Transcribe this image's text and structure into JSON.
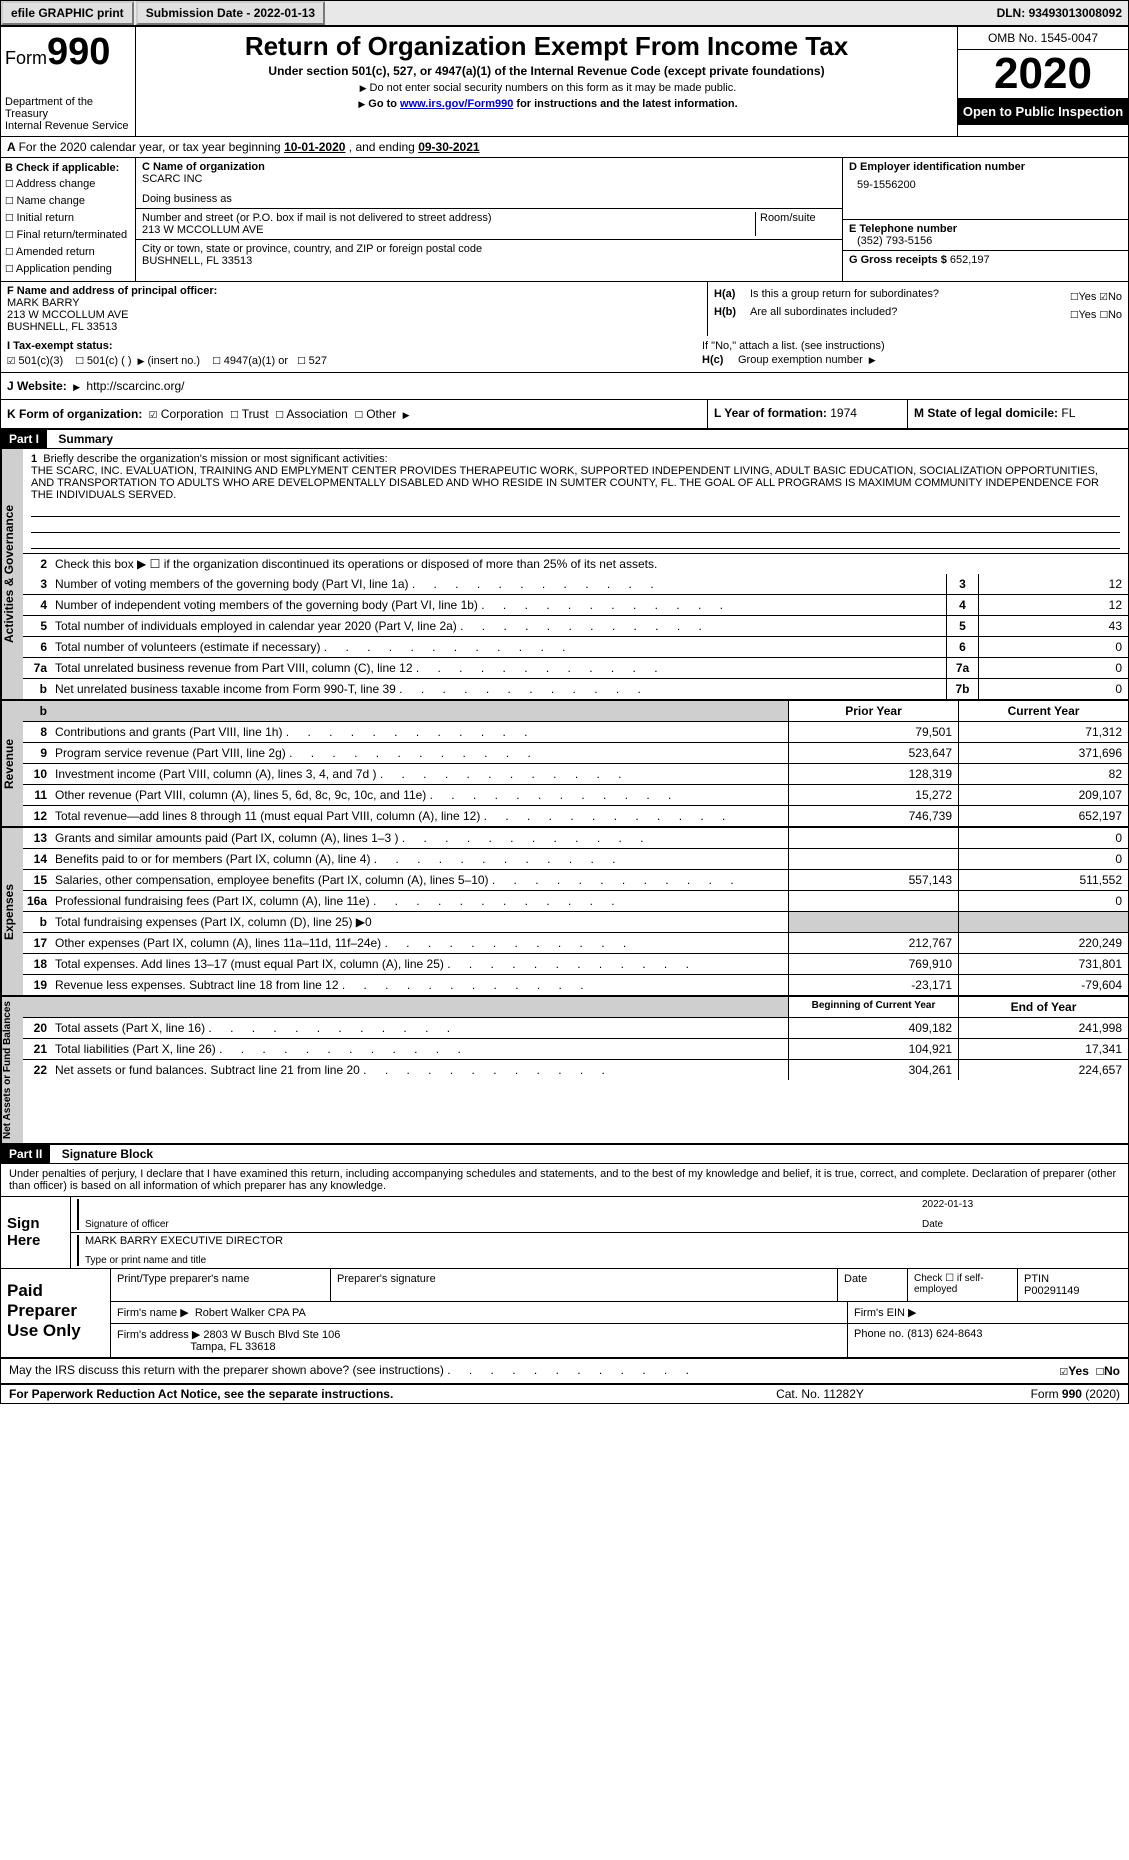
{
  "topbar": {
    "efile": "efile GRAPHIC print",
    "subdate_lbl": "Submission Date - ",
    "subdate": "2022-01-13",
    "dln_lbl": "DLN: ",
    "dln": "93493013008092"
  },
  "header": {
    "form_lbl": "Form",
    "form_num": "990",
    "dept": "Department of the Treasury\nInternal Revenue Service",
    "title": "Return of Organization Exempt From Income Tax",
    "subtitle": "Under section 501(c), 527, or 4947(a)(1) of the Internal Revenue Code (except private foundations)",
    "note1": "Do not enter social security numbers on this form as it may be made public.",
    "note2_a": "Go to ",
    "note2_link": "www.irs.gov/Form990",
    "note2_b": " for instructions and the latest information.",
    "omb": "OMB No. 1545-0047",
    "year": "2020",
    "open": "Open to Public Inspection"
  },
  "rowA": {
    "text_a": "For the 2020 calendar year, or tax year beginning ",
    "begin": "10-01-2020",
    "text_b": " , and ending ",
    "end": "09-30-2021"
  },
  "colB": {
    "lbl": "B Check if applicable:",
    "items": [
      "Address change",
      "Name change",
      "Initial return",
      "Final return/terminated",
      "Amended return",
      "Application pending"
    ]
  },
  "colC": {
    "name_lbl": "C Name of organization",
    "name": "SCARC INC",
    "dba_lbl": "Doing business as",
    "addr_lbl": "Number and street (or P.O. box if mail is not delivered to street address)",
    "addr": "213 W MCCOLLUM AVE",
    "room_lbl": "Room/suite",
    "city_lbl": "City or town, state or province, country, and ZIP or foreign postal code",
    "city": "BUSHNELL, FL  33513"
  },
  "colD": {
    "lbl": "D Employer identification number",
    "val": "59-1556200"
  },
  "colE": {
    "lbl": "E Telephone number",
    "val": "(352) 793-5156"
  },
  "colG": {
    "lbl": "G Gross receipts $ ",
    "val": "652,197"
  },
  "colF": {
    "lbl": "F Name and address of principal officer:",
    "name": "MARK BARRY",
    "addr1": "213 W MCCOLLUM AVE",
    "addr2": "BUSHNELL, FL  33513"
  },
  "colH": {
    "a": "Is this a group return for subordinates?",
    "b": "Are all subordinates included?",
    "bnote": "If \"No,\" attach a list. (see instructions)",
    "c": "Group exemption number"
  },
  "status": {
    "lbl": "I   Tax-exempt status:",
    "opts": [
      "501(c)(3)",
      "501(c) (  )",
      "(insert no.)",
      "4947(a)(1) or",
      "527"
    ]
  },
  "website": {
    "lbl": "J  Website:",
    "val": "http://scarcinc.org/"
  },
  "rowK": {
    "lbl": "K Form of organization:",
    "opts": [
      "Corporation",
      "Trust",
      "Association",
      "Other"
    ],
    "l_lbl": "L Year of formation: ",
    "l_val": "1974",
    "m_lbl": "M State of legal domicile: ",
    "m_val": "FL"
  },
  "part1": {
    "hdr": "Part I",
    "title": "Summary"
  },
  "mission": {
    "lbl": "Briefly describe the organization's mission or most significant activities:",
    "text": "THE SCARC, INC. EVALUATION, TRAINING AND EMPLYMENT CENTER PROVIDES THERAPEUTIC WORK, SUPPORTED INDEPENDENT LIVING, ADULT BASIC EDUCATION, SOCIALIZATION OPPORTUNITIES, AND TRANSPORTATION TO ADULTS WHO ARE DEVELOPMENTALLY DISABLED AND WHO RESIDE IN SUMTER COUNTY, FL. THE GOAL OF ALL PROGRAMS IS MAXIMUM COMMUNITY INDEPENDENCE FOR THE INDIVIDUALS SERVED."
  },
  "gov_lines": [
    {
      "n": "2",
      "d": "Check this box ▶ ☐  if the organization discontinued its operations or disposed of more than 25% of its net assets."
    },
    {
      "n": "3",
      "d": "Number of voting members of the governing body (Part VI, line 1a)",
      "bn": "3",
      "bv": "12"
    },
    {
      "n": "4",
      "d": "Number of independent voting members of the governing body (Part VI, line 1b)",
      "bn": "4",
      "bv": "12"
    },
    {
      "n": "5",
      "d": "Total number of individuals employed in calendar year 2020 (Part V, line 2a)",
      "bn": "5",
      "bv": "43"
    },
    {
      "n": "6",
      "d": "Total number of volunteers (estimate if necessary)",
      "bn": "6",
      "bv": "0"
    },
    {
      "n": "7a",
      "d": "Total unrelated business revenue from Part VIII, column (C), line 12",
      "bn": "7a",
      "bv": "0"
    },
    {
      "n": "b",
      "d": "Net unrelated business taxable income from Form 990-T, line 39",
      "bn": "7b",
      "bv": "0"
    }
  ],
  "rev_hdr": {
    "py": "Prior Year",
    "cy": "Current Year"
  },
  "rev_lines": [
    {
      "n": "8",
      "d": "Contributions and grants (Part VIII, line 1h)",
      "py": "79,501",
      "cy": "71,312"
    },
    {
      "n": "9",
      "d": "Program service revenue (Part VIII, line 2g)",
      "py": "523,647",
      "cy": "371,696"
    },
    {
      "n": "10",
      "d": "Investment income (Part VIII, column (A), lines 3, 4, and 7d )",
      "py": "128,319",
      "cy": "82"
    },
    {
      "n": "11",
      "d": "Other revenue (Part VIII, column (A), lines 5, 6d, 8c, 9c, 10c, and 11e)",
      "py": "15,272",
      "cy": "209,107"
    },
    {
      "n": "12",
      "d": "Total revenue—add lines 8 through 11 (must equal Part VIII, column (A), line 12)",
      "py": "746,739",
      "cy": "652,197"
    }
  ],
  "exp_lines": [
    {
      "n": "13",
      "d": "Grants and similar amounts paid (Part IX, column (A), lines 1–3 )",
      "py": "",
      "cy": "0"
    },
    {
      "n": "14",
      "d": "Benefits paid to or for members (Part IX, column (A), line 4)",
      "py": "",
      "cy": "0"
    },
    {
      "n": "15",
      "d": "Salaries, other compensation, employee benefits (Part IX, column (A), lines 5–10)",
      "py": "557,143",
      "cy": "511,552"
    },
    {
      "n": "16a",
      "d": "Professional fundraising fees (Part IX, column (A), line 11e)",
      "py": "",
      "cy": "0"
    },
    {
      "n": "b",
      "d": "Total fundraising expenses (Part IX, column (D), line 25) ▶0",
      "py": "shade",
      "cy": "shade"
    },
    {
      "n": "17",
      "d": "Other expenses (Part IX, column (A), lines 11a–11d, 11f–24e)",
      "py": "212,767",
      "cy": "220,249"
    },
    {
      "n": "18",
      "d": "Total expenses. Add lines 13–17 (must equal Part IX, column (A), line 25)",
      "py": "769,910",
      "cy": "731,801"
    },
    {
      "n": "19",
      "d": "Revenue less expenses. Subtract line 18 from line 12",
      "py": "-23,171",
      "cy": "-79,604"
    }
  ],
  "na_hdr": {
    "py": "Beginning of Current Year",
    "cy": "End of Year"
  },
  "na_lines": [
    {
      "n": "20",
      "d": "Total assets (Part X, line 16)",
      "py": "409,182",
      "cy": "241,998"
    },
    {
      "n": "21",
      "d": "Total liabilities (Part X, line 26)",
      "py": "104,921",
      "cy": "17,341"
    },
    {
      "n": "22",
      "d": "Net assets or fund balances. Subtract line 21 from line 20",
      "py": "304,261",
      "cy": "224,657"
    }
  ],
  "part2": {
    "hdr": "Part II",
    "title": "Signature Block"
  },
  "declare": "Under penalties of perjury, I declare that I have examined this return, including accompanying schedules and statements, and to the best of my knowledge and belief, it is true, correct, and complete. Declaration of preparer (other than officer) is based on all information of which preparer has any knowledge.",
  "sign": {
    "here": "Sign Here",
    "sig_lbl": "Signature of officer",
    "date_lbl": "Date",
    "date": "2022-01-13",
    "name": "MARK BARRY EXECUTIVE DIRECTOR",
    "name_lbl": "Type or print name and title"
  },
  "paid": {
    "lbl": "Paid Preparer Use Only",
    "h1": "Print/Type preparer's name",
    "h2": "Preparer's signature",
    "h3": "Date",
    "h4": "Check ☐ if self-employed",
    "h5_lbl": "PTIN",
    "h5": "P00291149",
    "firm_name_lbl": "Firm's name  ▶",
    "firm_name": "Robert Walker CPA PA",
    "firm_ein_lbl": "Firm's EIN ▶",
    "firm_addr_lbl": "Firm's address ▶",
    "firm_addr1": "2803 W Busch Blvd Ste 106",
    "firm_addr2": "Tampa, FL  33618",
    "phone_lbl": "Phone no. ",
    "phone": "(813) 624-8643"
  },
  "discuss": "May the IRS discuss this return with the preparer shown above? (see instructions)",
  "footer": {
    "l": "For Paperwork Reduction Act Notice, see the separate instructions.",
    "m": "Cat. No. 11282Y",
    "r": "Form 990 (2020)"
  },
  "sides": {
    "gov": "Activities & Governance",
    "rev": "Revenue",
    "exp": "Expenses",
    "na": "Net Assets or Fund Balances"
  },
  "yn": {
    "yes": "Yes",
    "no": "No"
  }
}
